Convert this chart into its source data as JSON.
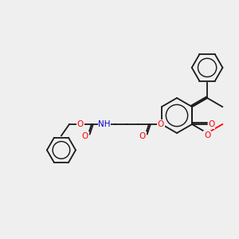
{
  "bg_color": "#efefef",
  "bond_color": "#1a1a1a",
  "atom_colors": {
    "O": "#ff0000",
    "N": "#0000cc",
    "H": "#888888",
    "C": "#1a1a1a"
  },
  "font_size": 7.5,
  "lw": 1.3
}
